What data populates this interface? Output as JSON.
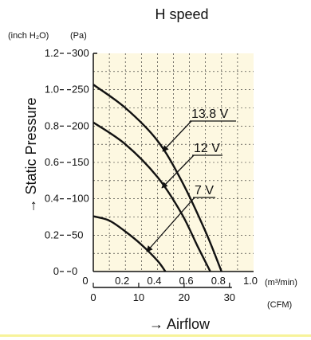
{
  "chart_data": {
    "type": "line",
    "title": "H speed",
    "x_primary": {
      "unit": "(m³/min)",
      "range": [
        0,
        1.0
      ],
      "ticks": [
        "0.2",
        "0.4",
        "0.6",
        "0.8",
        "1.0"
      ],
      "zero_label": "0"
    },
    "x_secondary": {
      "unit": "(CFM)",
      "range": [
        0,
        35.3
      ],
      "ticks": [
        "0",
        "10",
        "20",
        "30"
      ]
    },
    "xlabel": "→ Airflow",
    "y_left": {
      "unit": "(inch H₂O)",
      "range": [
        0,
        1.2
      ],
      "ticks": [
        "0",
        "0.2",
        "0.4",
        "0.6",
        "0.8",
        "1.0",
        "1.2"
      ]
    },
    "y_right": {
      "unit": "(Pa)",
      "range": [
        0,
        300
      ],
      "ticks": [
        "0",
        "50",
        "100",
        "150",
        "200",
        "250",
        "300"
      ]
    },
    "ylabel": "→ Static Pressure",
    "grid": true,
    "background": "#fdf8e1",
    "series": [
      {
        "name": "13.8 V",
        "x": [
          0,
          0.2,
          0.4,
          0.55,
          0.7,
          0.8
        ],
        "y": [
          257,
          225,
          180,
          125,
          55,
          0
        ]
      },
      {
        "name": "12 V",
        "x": [
          0,
          0.2,
          0.4,
          0.55,
          0.65,
          0.73
        ],
        "y": [
          205,
          175,
          130,
          80,
          35,
          0
        ]
      },
      {
        "name": "7 V",
        "x": [
          0,
          0.1,
          0.2,
          0.3,
          0.4,
          0.45
        ],
        "y": [
          76,
          70,
          55,
          37,
          15,
          0
        ]
      }
    ]
  }
}
